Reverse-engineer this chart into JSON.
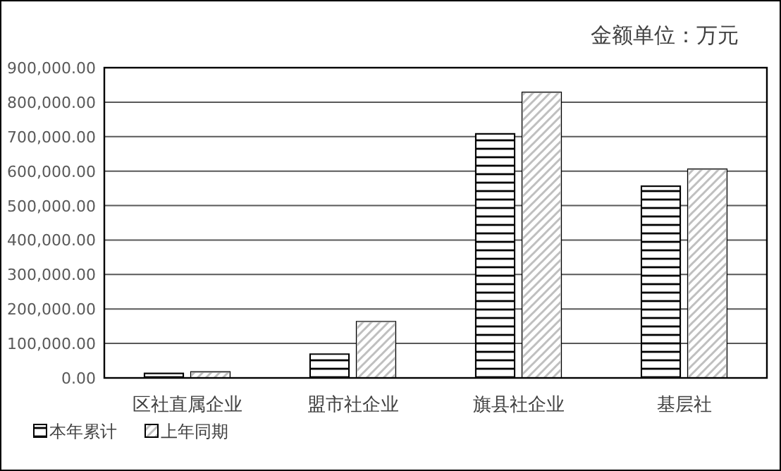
{
  "chart_data": {
    "type": "bar",
    "title": "金额单位：万元",
    "categories": [
      "区社直属企业",
      "盟市社企业",
      "旗县社企业",
      "基层社"
    ],
    "series": [
      {
        "name": "本年累计",
        "color": "#000000",
        "values": [
          12000,
          68000,
          707000,
          555000
        ]
      },
      {
        "name": "上年同期",
        "color": "#bfbfbf",
        "values": [
          16000,
          162000,
          827000,
          604000
        ]
      }
    ],
    "ylim": [
      0,
      900000
    ],
    "yticks": [
      {
        "value": 0,
        "label": "0.00"
      },
      {
        "value": 100000,
        "label": "100,000.00"
      },
      {
        "value": 200000,
        "label": "200,000.00"
      },
      {
        "value": 300000,
        "label": "300,000.00"
      },
      {
        "value": 400000,
        "label": "400,000.00"
      },
      {
        "value": 500000,
        "label": "500,000.00"
      },
      {
        "value": 600000,
        "label": "600,000.00"
      },
      {
        "value": 700000,
        "label": "700,000.00"
      },
      {
        "value": 800000,
        "label": "800,000.00"
      },
      {
        "value": 900000,
        "label": "900,000.00"
      }
    ],
    "grid": "y",
    "legend": "bottom left"
  }
}
